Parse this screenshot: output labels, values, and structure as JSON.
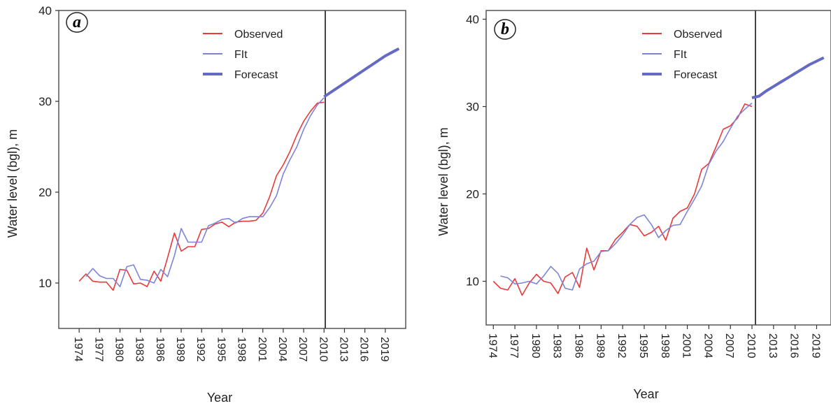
{
  "chart_data": [
    {
      "type": "line",
      "panel_label": "a",
      "xlabel": "Year",
      "ylabel": "Water level (bgl), m",
      "xlim": [
        1971,
        2022
      ],
      "ylim": [
        5,
        40
      ],
      "x_ticks": [
        "1974",
        "1977",
        "1980",
        "1983",
        "1986",
        "1989",
        "1992",
        "1995",
        "1998",
        "2001",
        "2004",
        "2007",
        "2010",
        "2013",
        "2016",
        "2019"
      ],
      "y_ticks": [
        "10",
        "20",
        "30",
        "40"
      ],
      "legend": {
        "position": "top-right",
        "entries": [
          "Observed",
          "FIt",
          "Forecast"
        ]
      },
      "series": [
        {
          "name": "Observed",
          "color": "#e83a3a",
          "x": [
            1974,
            1975,
            1976,
            1977,
            1978,
            1979,
            1980,
            1981,
            1982,
            1983,
            1984,
            1985,
            1986,
            1987,
            1988,
            1989,
            1990,
            1991,
            1992,
            1993,
            1994,
            1995,
            1996,
            1997,
            1998,
            1999,
            2000,
            2001,
            2002,
            2003,
            2004,
            2005,
            2006,
            2007,
            2008,
            2009,
            2010
          ],
          "y": [
            10.2,
            11.0,
            10.2,
            10.1,
            10.1,
            9.2,
            11.5,
            11.4,
            9.9,
            10.0,
            9.6,
            11.3,
            10.2,
            12.8,
            15.5,
            13.5,
            14.0,
            14.0,
            15.9,
            16.0,
            16.5,
            16.7,
            16.2,
            16.7,
            16.8,
            16.8,
            16.9,
            17.7,
            19.5,
            21.8,
            23.0,
            24.5,
            26.3,
            27.8,
            28.9,
            29.8,
            29.9
          ]
        },
        {
          "name": "FIt",
          "color": "#7d84d6",
          "x": [
            1975,
            1976,
            1977,
            1978,
            1979,
            1980,
            1981,
            1982,
            1983,
            1984,
            1985,
            1986,
            1987,
            1988,
            1989,
            1990,
            1991,
            1992,
            1993,
            1994,
            1995,
            1996,
            1997,
            1998,
            1999,
            2000,
            2001,
            2002,
            2003,
            2004,
            2005,
            2006,
            2007,
            2008,
            2009,
            2010
          ],
          "y": [
            10.7,
            11.6,
            10.8,
            10.5,
            10.5,
            9.6,
            11.8,
            12.0,
            10.4,
            10.3,
            10.0,
            11.5,
            10.7,
            13.0,
            16.0,
            14.5,
            14.5,
            14.5,
            16.3,
            16.6,
            17.0,
            17.1,
            16.6,
            17.1,
            17.3,
            17.3,
            17.3,
            18.3,
            19.6,
            22.0,
            23.6,
            25.0,
            26.9,
            28.4,
            29.6,
            30.4
          ]
        },
        {
          "name": "Forecast",
          "color": "#6469c4",
          "x": [
            2010,
            2011,
            2012,
            2013,
            2014,
            2015,
            2016,
            2017,
            2018,
            2019,
            2020,
            2021
          ],
          "y": [
            30.5,
            31.0,
            31.5,
            32.0,
            32.5,
            33.0,
            33.5,
            34.0,
            34.5,
            35.0,
            35.4,
            35.8
          ]
        }
      ]
    },
    {
      "type": "line",
      "panel_label": "b",
      "xlabel": "Year",
      "ylabel": "Water level (bgl), m",
      "xlim": [
        1973,
        2021
      ],
      "ylim": [
        5,
        41
      ],
      "x_ticks": [
        "1974",
        "1977",
        "1980",
        "1983",
        "1986",
        "1989",
        "1992",
        "1995",
        "1998",
        "2001",
        "2004",
        "2007",
        "2010",
        "2013",
        "2016",
        "2019"
      ],
      "y_ticks": [
        "10",
        "20",
        "30",
        "40"
      ],
      "legend": {
        "position": "top-right",
        "entries": [
          "Observed",
          "FIt",
          "Forecast"
        ]
      },
      "series": [
        {
          "name": "Observed",
          "color": "#e83a3a",
          "x": [
            1974,
            1975,
            1976,
            1977,
            1978,
            1979,
            1980,
            1981,
            1982,
            1983,
            1984,
            1985,
            1986,
            1987,
            1988,
            1989,
            1990,
            1991,
            1992,
            1993,
            1994,
            1995,
            1996,
            1997,
            1998,
            1999,
            2000,
            2001,
            2002,
            2003,
            2004,
            2005,
            2006,
            2007,
            2008,
            2009,
            2010
          ],
          "y": [
            10.0,
            9.2,
            9.0,
            10.3,
            8.4,
            9.8,
            10.8,
            10.0,
            9.8,
            8.6,
            10.5,
            11.0,
            9.3,
            13.8,
            11.3,
            13.5,
            13.5,
            14.8,
            15.6,
            16.5,
            16.3,
            15.2,
            15.6,
            16.3,
            14.7,
            17.2,
            18.0,
            18.4,
            20.0,
            22.8,
            23.5,
            25.4,
            27.4,
            27.8,
            28.7,
            30.3,
            30.0
          ]
        },
        {
          "name": "FIt",
          "color": "#7d84d6",
          "x": [
            1975,
            1976,
            1977,
            1978,
            1979,
            1980,
            1981,
            1982,
            1983,
            1984,
            1985,
            1986,
            1987,
            1988,
            1989,
            1990,
            1991,
            1992,
            1993,
            1994,
            1995,
            1996,
            1997,
            1998,
            1999,
            2000,
            2001,
            2002,
            2003,
            2004,
            2005,
            2006,
            2007,
            2008,
            2009,
            2010
          ],
          "y": [
            10.6,
            10.4,
            9.7,
            9.8,
            10.0,
            9.7,
            10.6,
            11.7,
            10.9,
            9.2,
            9.0,
            11.4,
            12.0,
            12.3,
            13.4,
            13.5,
            14.3,
            15.3,
            16.5,
            17.3,
            17.6,
            16.5,
            15.0,
            15.8,
            16.4,
            16.5,
            18.0,
            19.4,
            20.9,
            23.4,
            24.9,
            26.0,
            27.5,
            28.9,
            29.7,
            30.4
          ]
        },
        {
          "name": "Forecast",
          "color": "#6469c4",
          "x": [
            2010,
            2011,
            2012,
            2013,
            2014,
            2015,
            2016,
            2017,
            2018,
            2019,
            2020
          ],
          "y": [
            31.0,
            31.2,
            31.8,
            32.3,
            32.8,
            33.3,
            33.8,
            34.3,
            34.8,
            35.2,
            35.6
          ]
        }
      ]
    }
  ]
}
